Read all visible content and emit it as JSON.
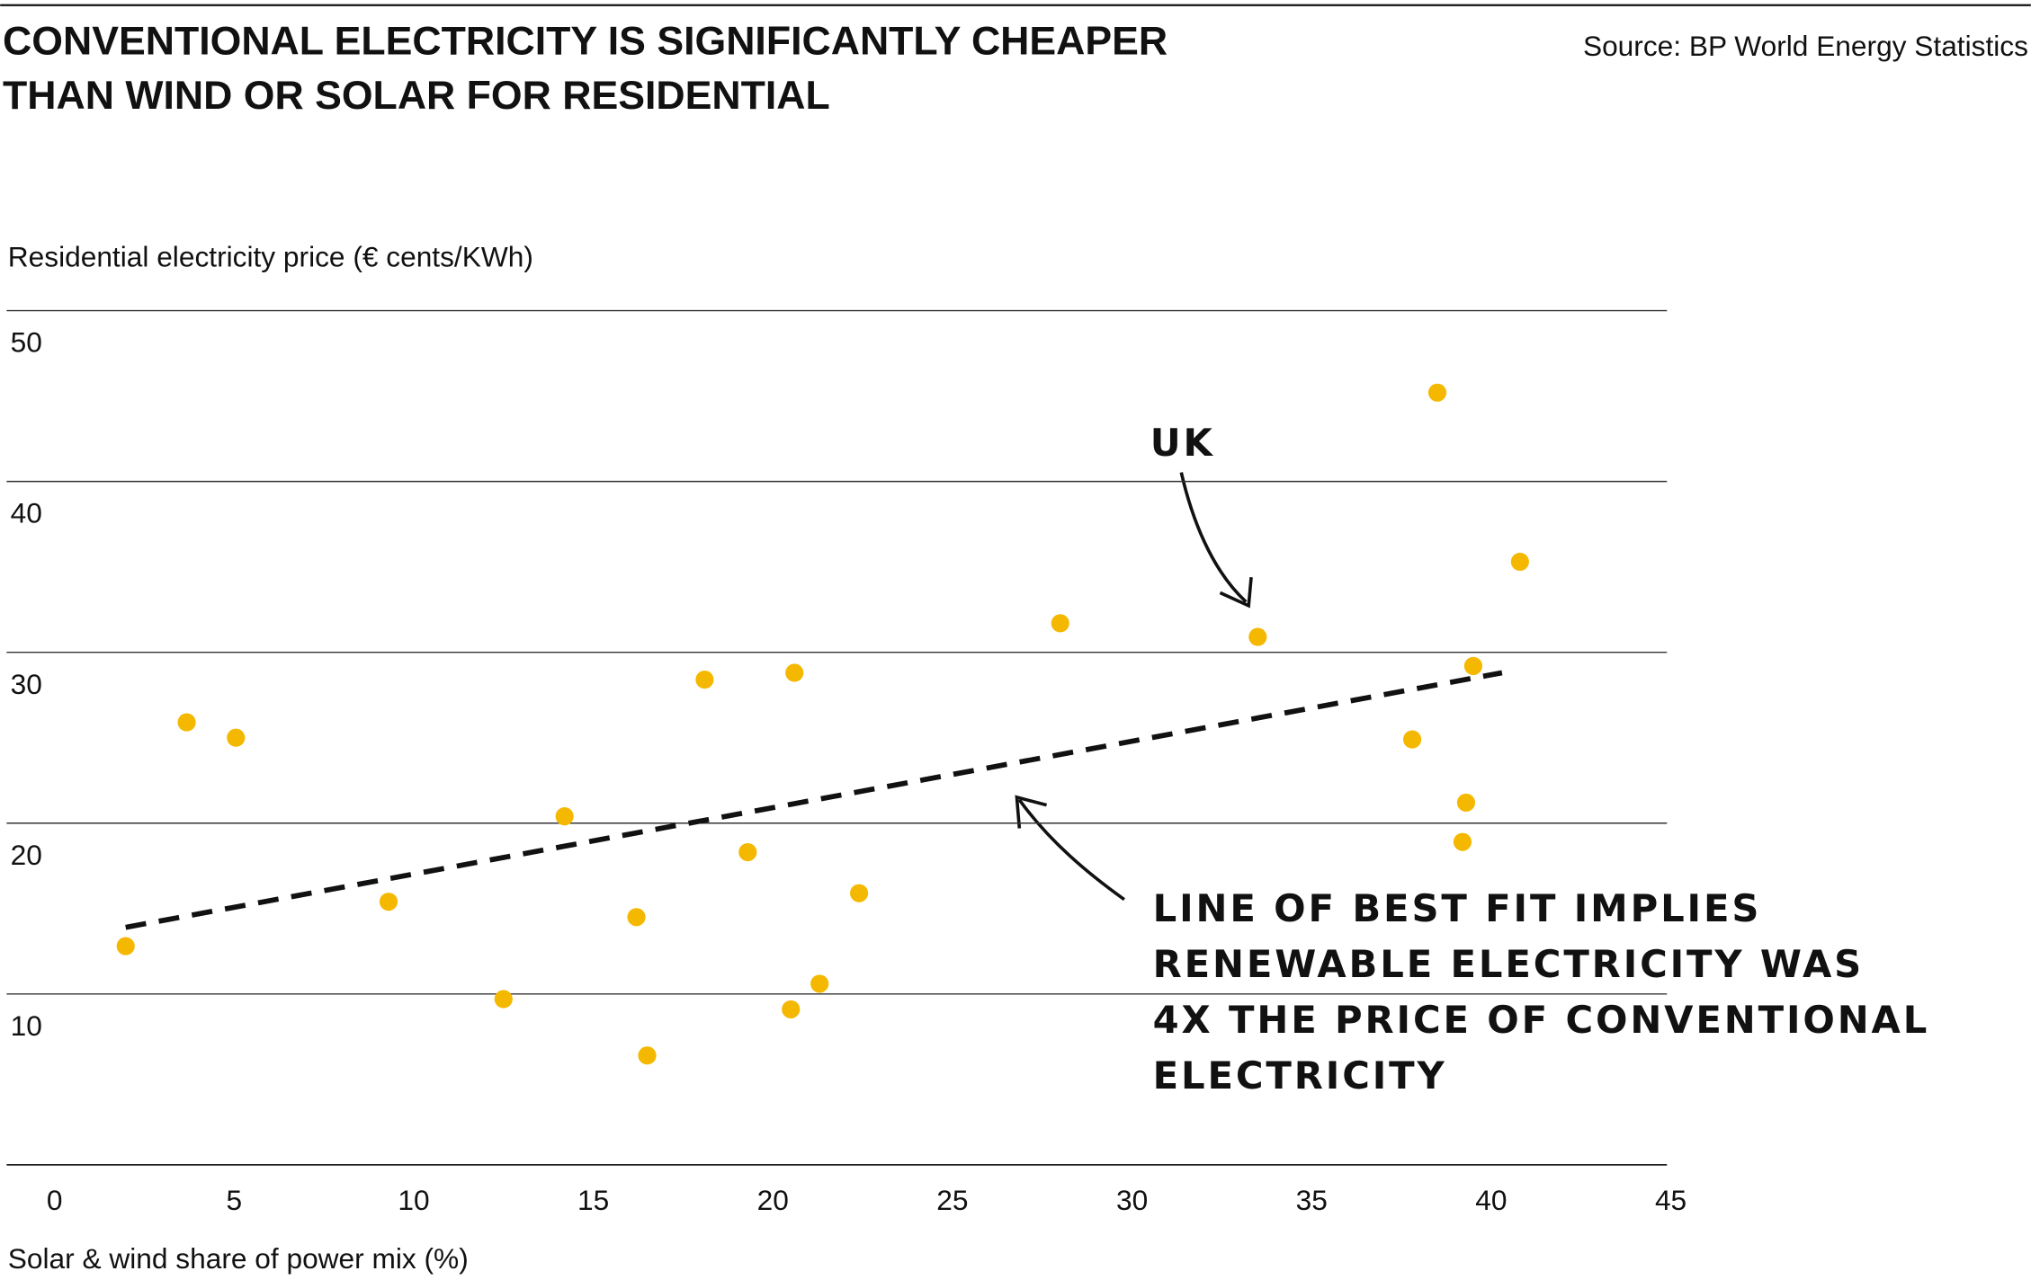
{
  "chart_data": {
    "type": "scatter",
    "title": [
      "CONVENTIONAL ELECTRICITY IS SIGNIFICANTLY CHEAPER",
      "THAN WIND OR SOLAR FOR RESIDENTIAL"
    ],
    "source": "Source: BP World Energy Statistics",
    "ylabel": "Residential electricity price (€ cents/KWh)",
    "xlabel": "Solar & wind share of power mix (%)",
    "xlim": [
      0,
      45
    ],
    "xticks": [
      0,
      5,
      10,
      15,
      20,
      25,
      30,
      35,
      40,
      45
    ],
    "ylim": [
      0,
      50
    ],
    "yticks": [
      10,
      20,
      30,
      40,
      50
    ],
    "grid": true,
    "color": "#f5b800",
    "x": [
      1.98,
      3.68,
      5.05,
      9.3,
      12.5,
      14.2,
      16.2,
      16.5,
      18.1,
      19.3,
      20.5,
      20.6,
      21.3,
      22.4,
      28.0,
      33.5,
      37.8,
      38.5,
      39.2,
      39.3,
      39.5,
      40.8
    ],
    "y": [
      12.8,
      25.9,
      25.0,
      15.4,
      9.7,
      20.4,
      14.5,
      6.4,
      28.4,
      18.3,
      9.1,
      28.8,
      10.6,
      15.9,
      31.7,
      30.9,
      24.9,
      45.2,
      18.9,
      21.2,
      29.2,
      35.3
    ],
    "trend": {
      "x": [
        1.98,
        40.3
      ],
      "y": [
        13.9,
        28.8
      ]
    },
    "annotations": {
      "uk": "UK",
      "fit": [
        "LINE OF BEST FIT IMPLIES",
        "RENEWABLE ELECTRICITY WAS",
        "4X THE PRICE OF CONVENTIONAL",
        "ELECTRICITY"
      ]
    }
  }
}
